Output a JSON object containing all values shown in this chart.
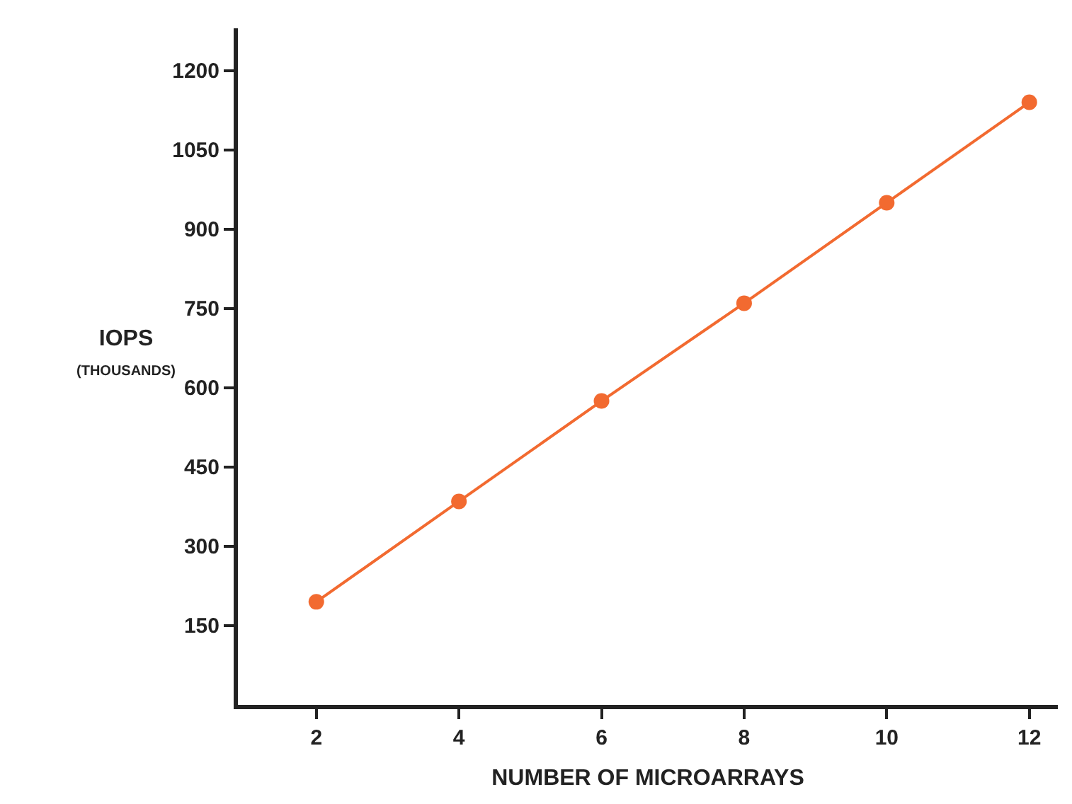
{
  "chart_data": {
    "type": "line",
    "xlabel": "NUMBER OF MICROARRAYS",
    "ylabel": "IOPS\n(THOUSANDS)",
    "x": [
      2,
      4,
      6,
      8,
      10,
      12
    ],
    "series": [
      {
        "color": "#f26a30",
        "values": [
          195,
          385,
          575,
          760,
          950,
          1140
        ]
      }
    ],
    "xlim": [
      0.9,
      12.4
    ],
    "xticks": [
      2,
      4,
      6,
      8,
      10,
      12
    ],
    "ylim": [
      0,
      1280
    ],
    "yticks": [
      150,
      300,
      450,
      600,
      750,
      900,
      1050,
      1200
    ],
    "marker": "circle",
    "line_style": "solid"
  }
}
